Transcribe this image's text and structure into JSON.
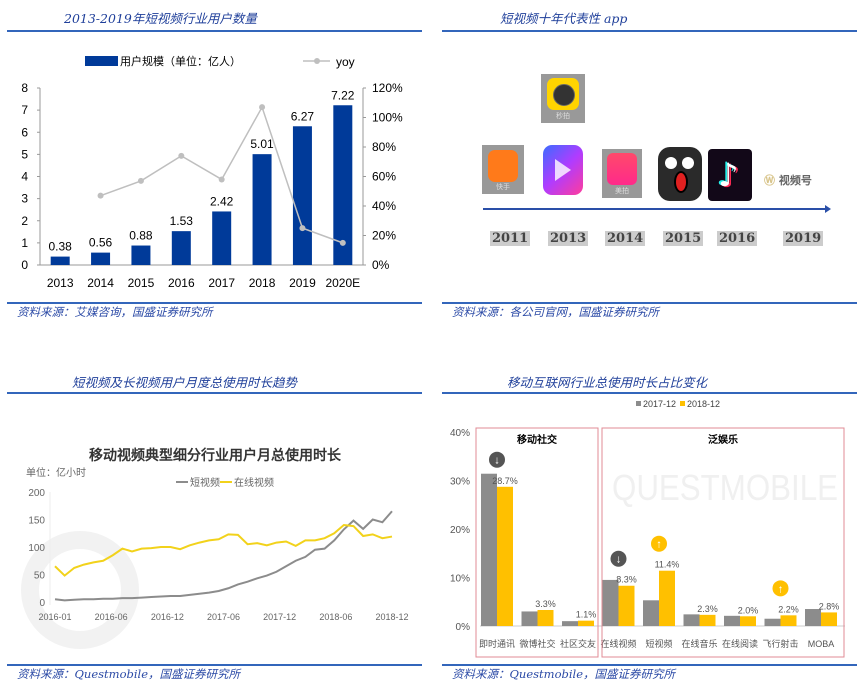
{
  "panels": [
    {
      "title": "2013-2019年短视频行业用户数量",
      "source": "资料来源：艾媒咨询，国盛证券研究所"
    },
    {
      "title": "短视频十年代表性 app",
      "source": "资料来源：各公司官网，国盛证券研究所"
    },
    {
      "title": "短视频及长视频用户月度总使用时长趋势",
      "source": "资料来源：Questmobile，国盛证券研究所"
    },
    {
      "title": "移动互联网行业总使用时长占比变化",
      "source": "资料来源：Questmobile，国盛证券研究所"
    }
  ],
  "timeline": {
    "apps": [
      {
        "name": "快手",
        "year": "2011"
      },
      {
        "name": "秒拍",
        "year": "2013"
      },
      {
        "name": "微视",
        "year": "2013"
      },
      {
        "name": "美拍",
        "year": "2014"
      },
      {
        "name": "小咖秀",
        "year": "2015"
      },
      {
        "name": "抖音",
        "year": "2016"
      },
      {
        "name": "视频号",
        "year": "2019"
      }
    ],
    "years": [
      "2011",
      "2013",
      "2014",
      "2015",
      "2016",
      "2019"
    ]
  },
  "chart_data": [
    {
      "type": "bar",
      "title": "2013-2019年短视频行业用户数量",
      "categories": [
        "2013",
        "2014",
        "2015",
        "2016",
        "2017",
        "2018",
        "2019",
        "2020E"
      ],
      "series": [
        {
          "name": "用户规模（单位：亿人）",
          "values": [
            0.38,
            0.56,
            0.88,
            1.53,
            2.42,
            5.01,
            6.27,
            7.22
          ],
          "color": "#003a99"
        },
        {
          "name": "yoy",
          "type": "line",
          "axis": "right",
          "values": [
            null,
            47,
            57,
            74,
            58,
            107,
            25,
            15
          ],
          "color": "#bfbfbf"
        }
      ],
      "ylim": [
        0,
        8
      ],
      "yticks": [
        "0",
        "1",
        "2",
        "3",
        "4",
        "5",
        "6",
        "7",
        "8"
      ],
      "y2lim": [
        0,
        120
      ],
      "y2ticks": [
        "0%",
        "20%",
        "40%",
        "60%",
        "80%",
        "100%",
        "120%"
      ],
      "legend": "top"
    },
    {
      "type": "line",
      "title": "移动视频典型细分行业用户月总使用时长",
      "ylabel": "单位：亿小时",
      "xticks": [
        "2016-01",
        "2016-06",
        "2016-12",
        "2017-06",
        "2017-12",
        "2018-06",
        "2018-12"
      ],
      "yticks": [
        "0",
        "50",
        "100",
        "150",
        "200"
      ],
      "ylim": [
        0,
        200
      ],
      "series": [
        {
          "name": "短视频",
          "color": "#8c8c8c",
          "values": [
            5,
            3,
            4,
            5,
            5,
            6,
            6,
            7,
            7,
            8,
            9,
            10,
            11,
            11,
            13,
            15,
            17,
            20,
            25,
            32,
            37,
            43,
            48,
            55,
            65,
            75,
            82,
            95,
            97,
            112,
            132,
            148,
            133,
            150,
            145,
            165
          ]
        },
        {
          "name": "在线视频",
          "color": "#f2d21b",
          "values": [
            65,
            48,
            62,
            68,
            72,
            75,
            85,
            97,
            92,
            97,
            98,
            100,
            100,
            96,
            103,
            108,
            112,
            114,
            123,
            122,
            105,
            107,
            103,
            108,
            110,
            102,
            112,
            112,
            116,
            125,
            140,
            138,
            120,
            123,
            116,
            119
          ]
        }
      ]
    },
    {
      "type": "bar",
      "title": "移动互联网行业总使用时长占比变化",
      "watermark": "QUESTMOBILE",
      "groups": [
        {
          "name": "移动社交",
          "count": 3
        },
        {
          "name": "泛娱乐",
          "count": 6
        }
      ],
      "categories": [
        "即时通讯",
        "微博社交",
        "社区交友",
        "在线视频",
        "短视频",
        "在线音乐",
        "在线阅读",
        "飞行射击",
        "MOBA"
      ],
      "series": [
        {
          "name": "2017-12",
          "color": "#8c8c8c",
          "values": [
            31.4,
            3.0,
            1.0,
            9.5,
            5.3,
            2.4,
            2.1,
            1.5,
            3.5
          ]
        },
        {
          "name": "2018-12",
          "color": "#ffc000",
          "values": [
            28.7,
            3.3,
            1.1,
            8.3,
            11.4,
            2.3,
            2.0,
            2.2,
            2.8
          ]
        }
      ],
      "labels": [
        "28.7%",
        "3.3%",
        "1.1%",
        "8.3%",
        "11.4%",
        "2.3%",
        "2.0%",
        "2.2%",
        "2.8%"
      ],
      "arrows": {
        "0": "down",
        "3": "down",
        "4": "up",
        "7": "up"
      },
      "ylim": [
        0,
        40
      ],
      "yticks": [
        "0%",
        "10%",
        "20%",
        "30%",
        "40%"
      ],
      "legend": "top"
    }
  ]
}
